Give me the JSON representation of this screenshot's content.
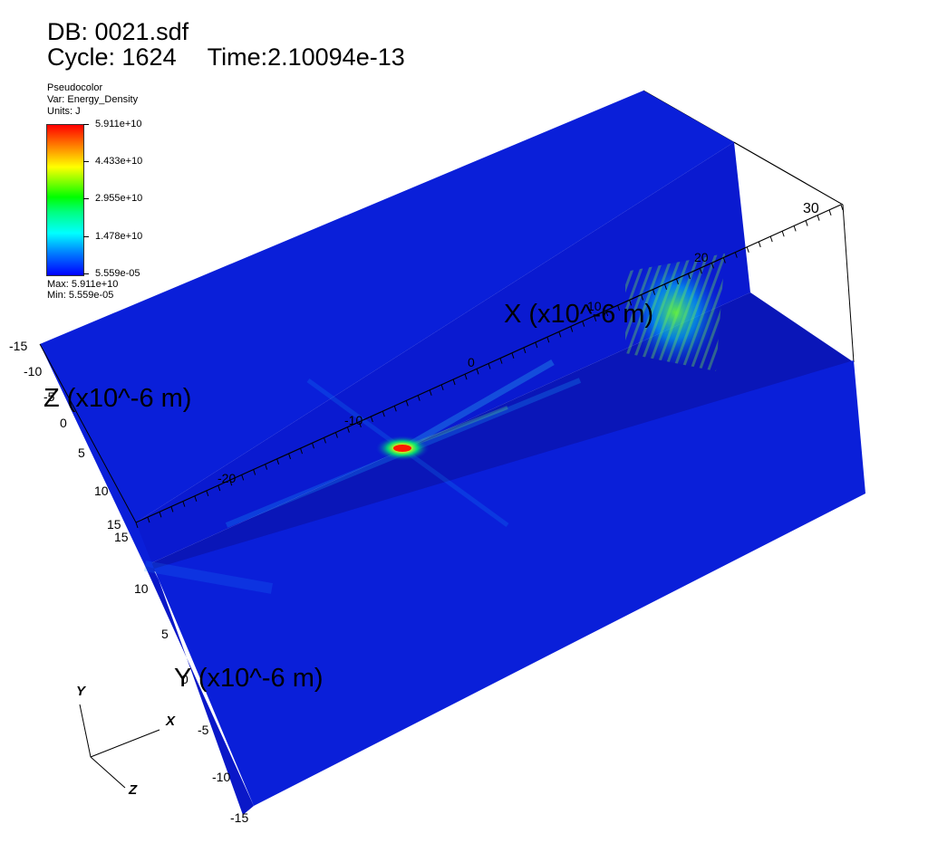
{
  "header": {
    "db": "DB: 0021.sdf",
    "cycle": "Cycle: 1624",
    "time": "Time:2.10094e-13"
  },
  "legend": {
    "plot_type": "Pseudocolor",
    "variable": "Var: Energy_Density",
    "units": "Units: J",
    "ticks": [
      "5.911e+10",
      "4.433e+10",
      "2.955e+10",
      "1.478e+10",
      "5.559e-05"
    ],
    "max": "Max:  5.911e+10",
    "min": "Min:  5.559e-05",
    "colors": [
      "#0000ff",
      "#00ffff",
      "#00ff00",
      "#ffff00",
      "#ff0000"
    ]
  },
  "axes": {
    "x_title": "X (x10^-6 m)",
    "z_title": "Z (x10^-6 m)",
    "y_title": "Y (x10^-6 m)",
    "x_ticks": [
      "-20",
      "-10",
      "0",
      "10",
      "20",
      "30"
    ],
    "z_ticks": [
      "-15",
      "-10",
      "-5",
      "0",
      "5",
      "10",
      "15"
    ],
    "y_ticks": [
      "15",
      "10",
      "5",
      "0",
      "-5",
      "-10",
      "-15"
    ]
  },
  "triad": {
    "y": "Y",
    "x": "X",
    "z": "Z"
  },
  "volume_colors": {
    "background_field": "#0a1fd9",
    "dark_face": "#0a16b8",
    "hot_spot": "#ff3300"
  }
}
